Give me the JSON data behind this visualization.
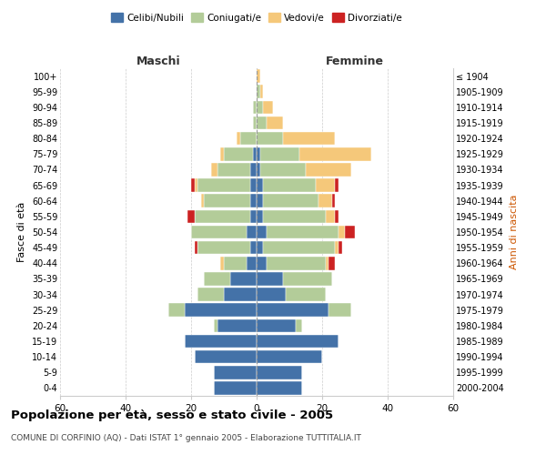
{
  "age_groups": [
    "0-4",
    "5-9",
    "10-14",
    "15-19",
    "20-24",
    "25-29",
    "30-34",
    "35-39",
    "40-44",
    "45-49",
    "50-54",
    "55-59",
    "60-64",
    "65-69",
    "70-74",
    "75-79",
    "80-84",
    "85-89",
    "90-94",
    "95-99",
    "100+"
  ],
  "birth_years": [
    "2000-2004",
    "1995-1999",
    "1990-1994",
    "1985-1989",
    "1980-1984",
    "1975-1979",
    "1970-1974",
    "1965-1969",
    "1960-1964",
    "1955-1959",
    "1950-1954",
    "1945-1949",
    "1940-1944",
    "1935-1939",
    "1930-1934",
    "1925-1929",
    "1920-1924",
    "1915-1919",
    "1910-1914",
    "1905-1909",
    "≤ 1904"
  ],
  "colors": {
    "celibi": "#4472a8",
    "coniugati": "#b3cc99",
    "vedovi": "#f5c87a",
    "divorziati": "#cc2222"
  },
  "maschi": {
    "celibi": [
      13,
      13,
      19,
      22,
      12,
      22,
      10,
      8,
      3,
      2,
      3,
      2,
      2,
      2,
      2,
      1,
      0,
      0,
      0,
      0,
      0
    ],
    "coniugati": [
      0,
      0,
      0,
      0,
      1,
      5,
      8,
      8,
      7,
      16,
      17,
      17,
      14,
      16,
      10,
      9,
      5,
      1,
      1,
      0,
      0
    ],
    "vedovi": [
      0,
      0,
      0,
      0,
      0,
      0,
      0,
      0,
      1,
      0,
      0,
      0,
      1,
      1,
      2,
      1,
      1,
      0,
      0,
      0,
      0
    ],
    "divorziati": [
      0,
      0,
      0,
      0,
      0,
      0,
      0,
      0,
      0,
      1,
      0,
      2,
      0,
      1,
      0,
      0,
      0,
      0,
      0,
      0,
      0
    ]
  },
  "femmine": {
    "celibi": [
      14,
      14,
      20,
      25,
      12,
      22,
      9,
      8,
      3,
      2,
      3,
      2,
      2,
      2,
      1,
      1,
      0,
      0,
      0,
      0,
      0
    ],
    "coniugati": [
      0,
      0,
      0,
      0,
      2,
      7,
      12,
      15,
      18,
      22,
      22,
      19,
      17,
      16,
      14,
      12,
      8,
      3,
      2,
      1,
      0
    ],
    "vedovi": [
      0,
      0,
      0,
      0,
      0,
      0,
      0,
      0,
      1,
      1,
      2,
      3,
      4,
      6,
      14,
      22,
      16,
      5,
      3,
      1,
      1
    ],
    "divorziati": [
      0,
      0,
      0,
      0,
      0,
      0,
      0,
      0,
      2,
      1,
      3,
      1,
      1,
      1,
      0,
      0,
      0,
      0,
      0,
      0,
      0
    ]
  },
  "title": "Popolazione per età, sesso e stato civile - 2005",
  "subtitle": "COMUNE DI CORFINIO (AQ) - Dati ISTAT 1° gennaio 2005 - Elaborazione TUTTITALIA.IT",
  "xlabel_maschi": "Maschi",
  "xlabel_femmine": "Femmine",
  "ylabel_left": "Fasce di età",
  "ylabel_right": "Anni di nascita",
  "xlim": 60,
  "bg_color": "#ffffff",
  "grid_color": "#cccccc"
}
